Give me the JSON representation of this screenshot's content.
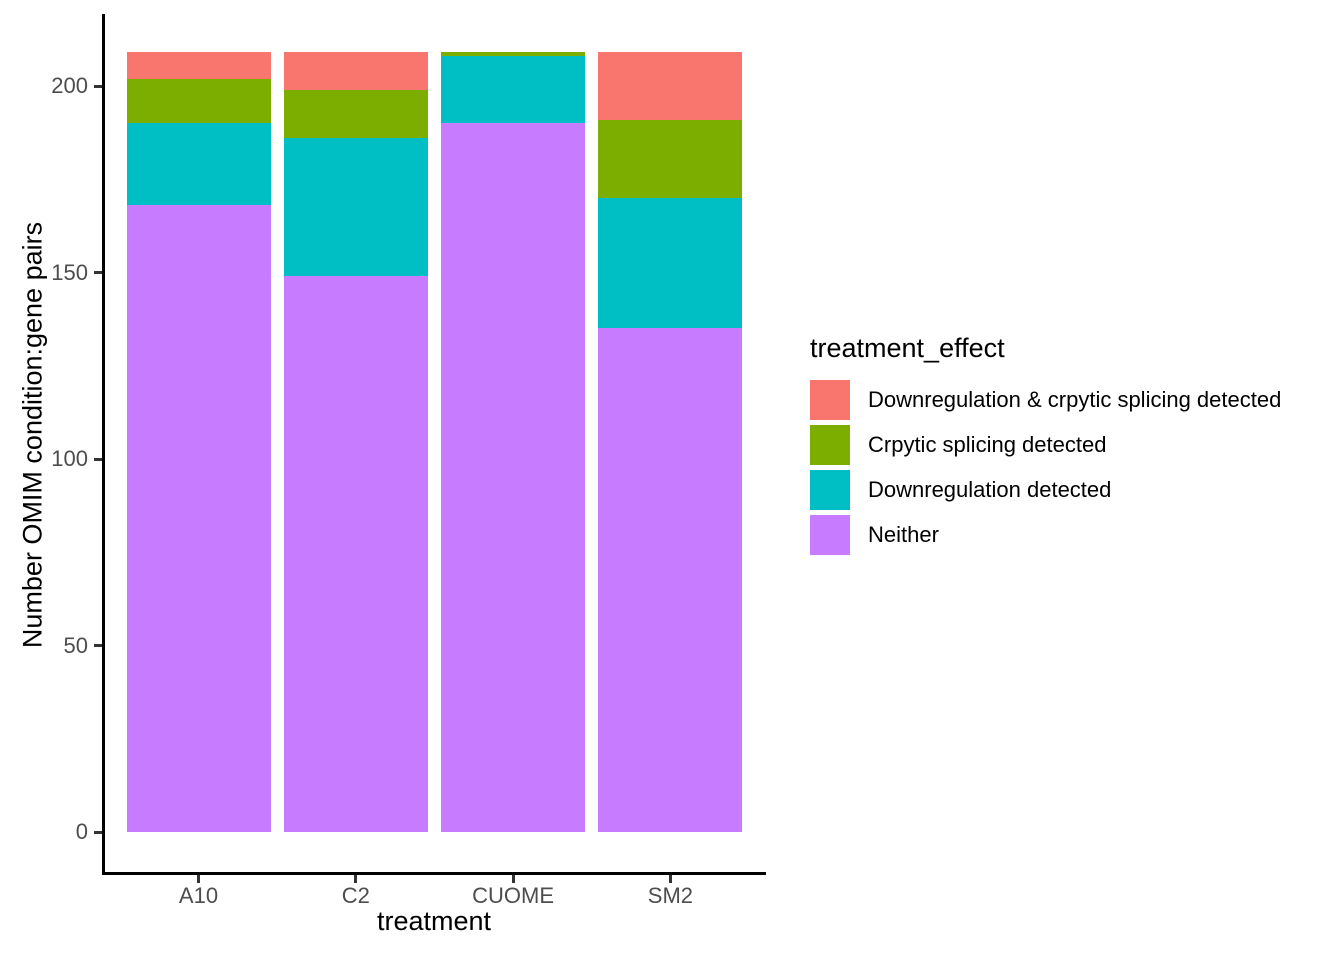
{
  "chart_data": {
    "type": "bar",
    "stacked": true,
    "xlabel": "treatment",
    "ylabel": "Number OMIM condition:gene pairs",
    "legend_title": "treatment_effect",
    "legend_position": "right",
    "grid": false,
    "categories": [
      "A10",
      "C2",
      "CUOME",
      "SM2"
    ],
    "series": [
      {
        "name": "Downregulation & crpytic splicing detected",
        "color": "#F8766D",
        "values": [
          7,
          10,
          0,
          18
        ]
      },
      {
        "name": "Crpytic splicing detected",
        "color": "#7CAE00",
        "values": [
          12,
          13,
          1,
          21
        ]
      },
      {
        "name": "Downregulation detected",
        "color": "#00BFC4",
        "values": [
          22,
          37,
          18,
          35
        ]
      },
      {
        "name": "Neither",
        "color": "#C77CFF",
        "values": [
          168,
          149,
          190,
          135
        ]
      }
    ],
    "bar_totals": [
      209,
      209,
      209,
      209
    ],
    "y_ticks": [
      0,
      50,
      100,
      150,
      200
    ],
    "ylim": [
      0,
      219
    ]
  }
}
